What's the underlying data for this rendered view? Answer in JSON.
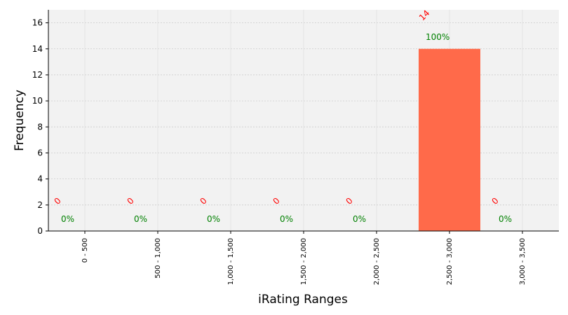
{
  "chart_data": {
    "type": "bar",
    "categories": [
      "0 - 500",
      "500 - 1,000",
      "1,000 - 1,500",
      "1,500 - 2,000",
      "2,000 - 2,500",
      "2,500 - 3,000",
      "3,000 - 3,500"
    ],
    "values": [
      0,
      0,
      0,
      0,
      0,
      14,
      0
    ],
    "count_labels": [
      "0",
      "0",
      "0",
      "0",
      "0",
      "14",
      "0"
    ],
    "percent_labels": [
      "0%",
      "0%",
      "0%",
      "0%",
      "0%",
      "100%",
      "0%"
    ],
    "xlabel": "iRating Ranges",
    "ylabel": "Frequency",
    "ylim": [
      0,
      17
    ],
    "yticks": [
      "0",
      "2",
      "4",
      "6",
      "8",
      "10",
      "12",
      "14",
      "16"
    ],
    "grid": true,
    "colors": {
      "bar": "#ff6a4a",
      "plot_background": "#f2f2f2",
      "grid": "#cccccc",
      "count_label": "#ff0000",
      "percent_label": "#008000"
    }
  }
}
